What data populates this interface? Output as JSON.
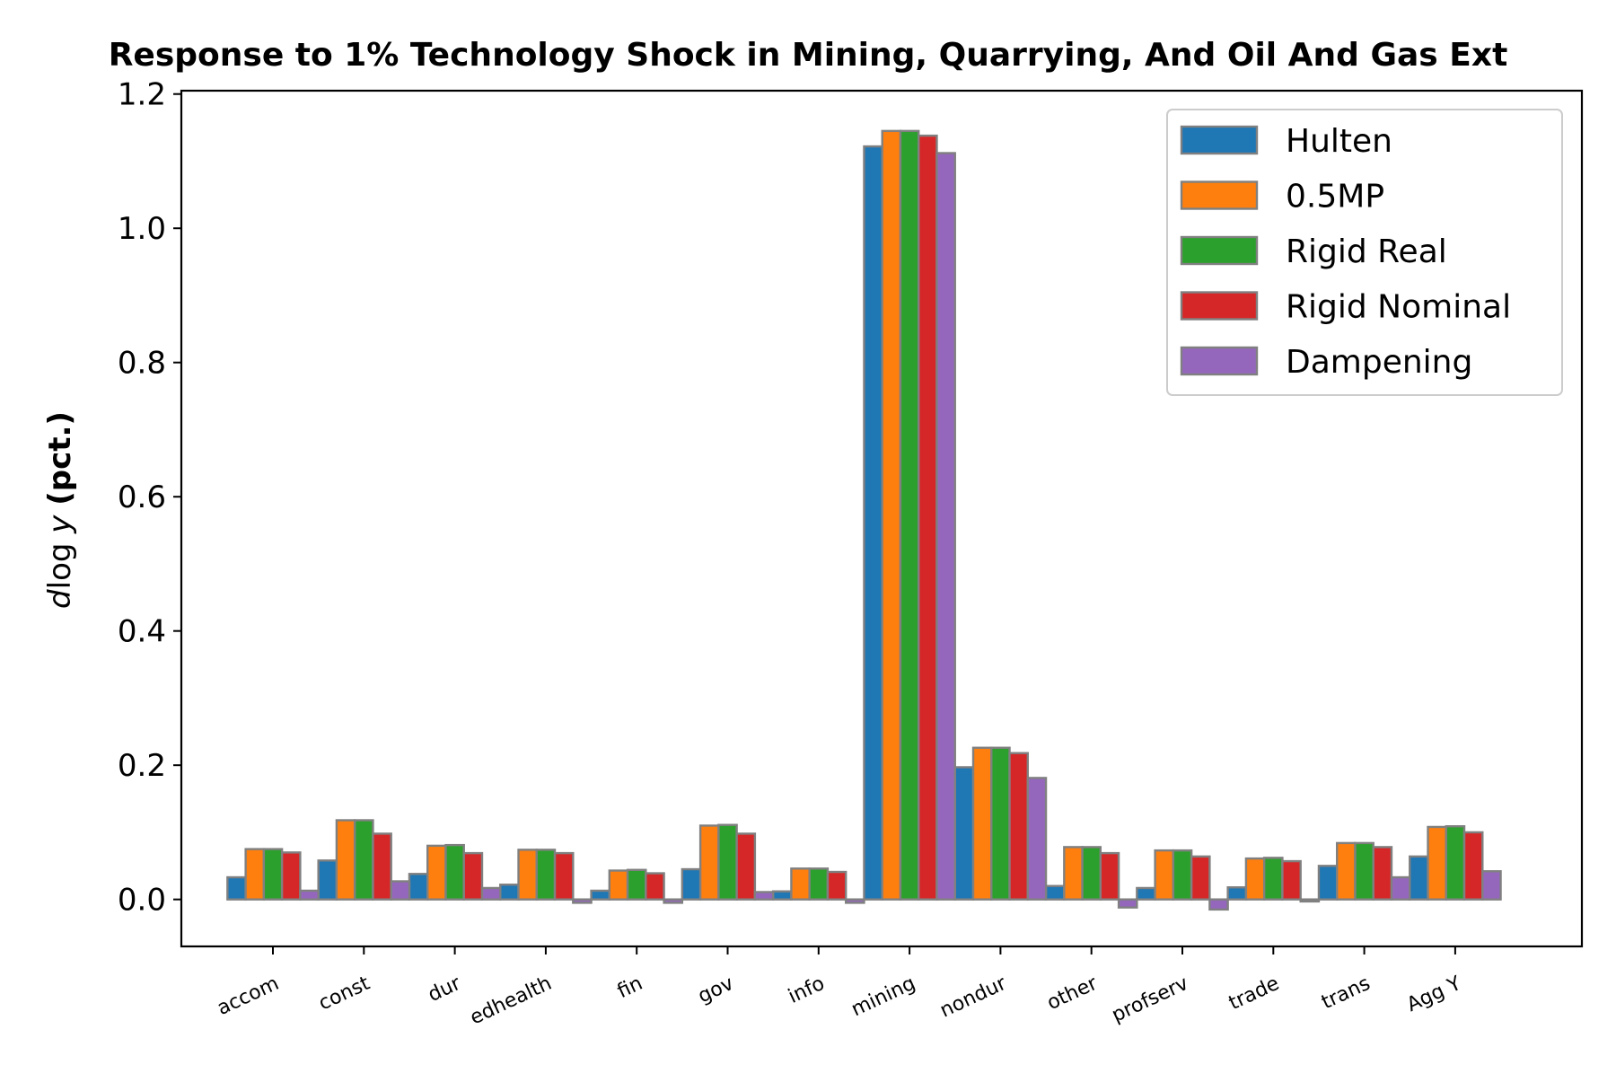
{
  "colors": {
    "edge": "#808080",
    "axis": "#000000",
    "legend_border": "#cccccc"
  },
  "chart_data": {
    "type": "bar",
    "title": "Response to 1% Technology Shock in Mining, Quarrying, And Oil And Gas Ext",
    "ylabel": {
      "d": "d",
      "log": "log",
      "y": "y",
      "unit": "(pct.)"
    },
    "xlabel": "",
    "ylim": [
      -0.07,
      1.205
    ],
    "yticks": [
      0.0,
      0.2,
      0.4,
      0.6,
      0.8,
      1.0,
      1.2
    ],
    "ytick_labels": [
      "0.0",
      "0.2",
      "0.4",
      "0.6",
      "0.8",
      "1.0",
      "1.2"
    ],
    "grid": false,
    "legend_position": "top-right",
    "categories": [
      "accom",
      "const",
      "dur",
      "edhealth",
      "fin",
      "gov",
      "info",
      "mining",
      "nondur",
      "other",
      "profserv",
      "trade",
      "trans",
      "Agg Y"
    ],
    "series": [
      {
        "name": "Hulten",
        "color": "#1f77b4",
        "values": [
          0.033,
          0.058,
          0.038,
          0.022,
          0.013,
          0.045,
          0.012,
          1.122,
          0.197,
          0.02,
          0.017,
          0.018,
          0.05,
          0.064
        ]
      },
      {
        "name": "0.5MP",
        "color": "#ff7f0e",
        "values": [
          0.075,
          0.118,
          0.08,
          0.074,
          0.043,
          0.11,
          0.046,
          1.145,
          0.226,
          0.078,
          0.073,
          0.061,
          0.084,
          0.108
        ]
      },
      {
        "name": "Rigid Real",
        "color": "#2ca02c",
        "values": [
          0.075,
          0.118,
          0.081,
          0.074,
          0.044,
          0.111,
          0.046,
          1.145,
          0.226,
          0.078,
          0.073,
          0.062,
          0.084,
          0.109
        ]
      },
      {
        "name": "Rigid Nominal",
        "color": "#d62728",
        "values": [
          0.07,
          0.098,
          0.069,
          0.069,
          0.039,
          0.098,
          0.041,
          1.138,
          0.218,
          0.069,
          0.064,
          0.057,
          0.078,
          0.1
        ]
      },
      {
        "name": "Dampening",
        "color": "#9467bd",
        "values": [
          0.013,
          0.027,
          0.017,
          -0.005,
          -0.005,
          0.011,
          -0.005,
          1.112,
          0.181,
          -0.012,
          -0.015,
          -0.003,
          0.033,
          0.042
        ]
      }
    ]
  }
}
